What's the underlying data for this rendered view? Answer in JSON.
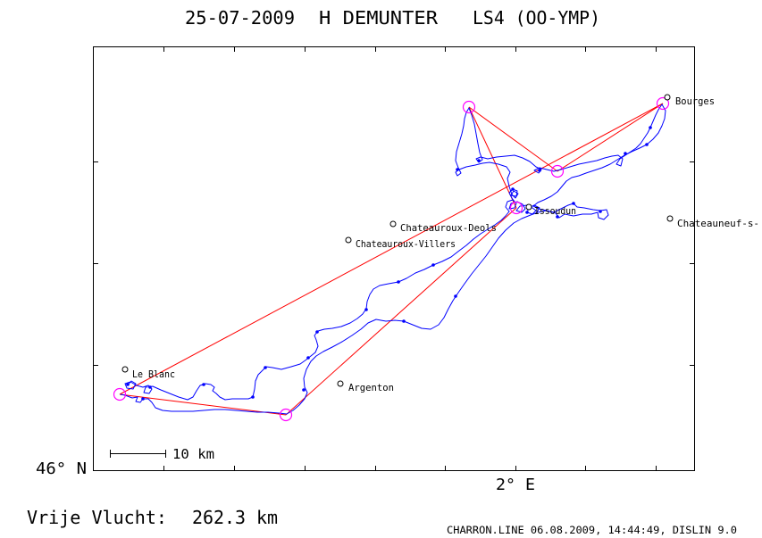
{
  "title": {
    "date": "25-07-2009",
    "pilot": "H DEMUNTER",
    "glider": "LS4 (OO-YMP)"
  },
  "axes": {
    "lat_label": "46° N",
    "lon_label": "2° E"
  },
  "scale_bar": {
    "label": "10 km"
  },
  "towns": [
    {
      "name": "Bourges"
    },
    {
      "name": "Chateauneuf-s-"
    },
    {
      "name": "Issoudun"
    },
    {
      "name": "Chateauroux-Deols"
    },
    {
      "name": "Chateauroux-Villers"
    },
    {
      "name": "Argenton"
    },
    {
      "name": "Le Blanc"
    }
  ],
  "summary": {
    "label": "Vrije Vlucht:",
    "distance": "262.3 km"
  },
  "footer": {
    "text": "CHARRON.LINE 06.08.2009, 14:44:49, DISLIN 9.0"
  },
  "colors": {
    "track": "#0000ff",
    "task": "#ff0000",
    "turnpoint": "#ff00ff"
  }
}
